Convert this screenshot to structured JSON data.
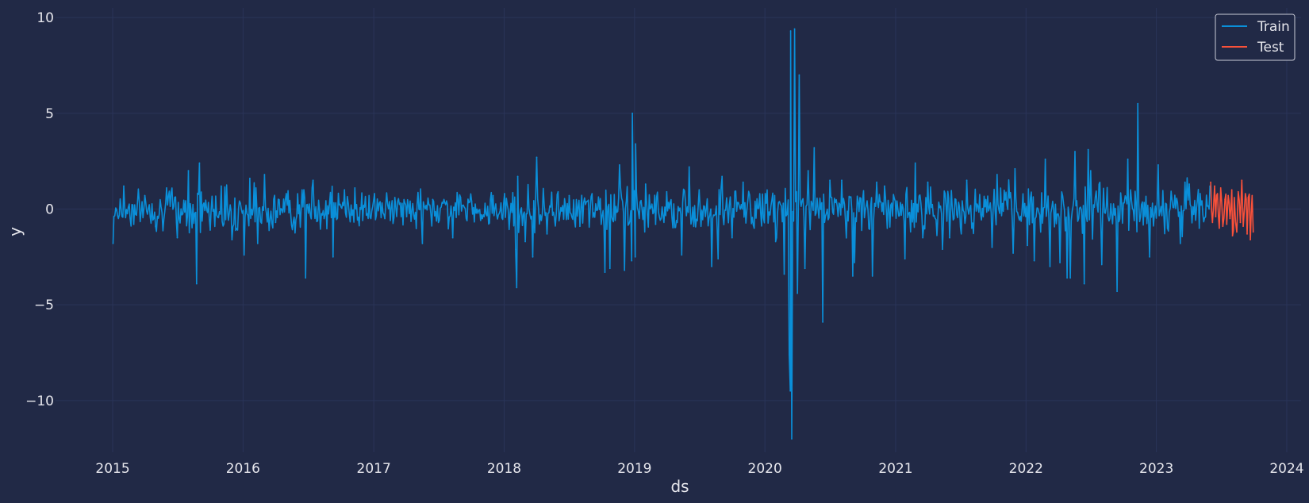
{
  "chart_data": {
    "type": "line",
    "title": "",
    "xlabel": "ds",
    "ylabel": "y",
    "xlim": [
      "2014-07-25",
      "2024-02-10"
    ],
    "ylim": [
      -12.7,
      10.5
    ],
    "grid": true,
    "legend_position": "top-right",
    "x_ticks": [
      "2015",
      "2016",
      "2017",
      "2018",
      "2019",
      "2020",
      "2021",
      "2022",
      "2023",
      "2024"
    ],
    "y_ticks": [
      10,
      5,
      0,
      -5,
      -10
    ],
    "y_tick_labels": [
      "10",
      "5",
      "0",
      "−5",
      "−10"
    ],
    "series": [
      {
        "name": "Train",
        "color": "#0a8fd9",
        "x": [
          "2015-01-02",
          "2015-02-01",
          "2015-03-01",
          "2015-04-01",
          "2015-05-01",
          "2015-06-01",
          "2015-07-01",
          "2015-08-01",
          "2015-08-24",
          "2015-09-01",
          "2015-10-01",
          "2015-11-01",
          "2015-12-01",
          "2016-01-04",
          "2016-01-20",
          "2016-02-11",
          "2016-03-01",
          "2016-04-01",
          "2016-05-01",
          "2016-06-24",
          "2016-07-15",
          "2016-08-15",
          "2016-09-09",
          "2016-10-11",
          "2016-11-09",
          "2016-12-01",
          "2017-01-03",
          "2017-02-01",
          "2017-03-01",
          "2017-04-03",
          "2017-05-17",
          "2017-06-15",
          "2017-07-14",
          "2017-08-10",
          "2017-09-01",
          "2017-10-02",
          "2017-11-01",
          "2017-12-01",
          "2018-01-02",
          "2018-02-02",
          "2018-02-05",
          "2018-02-08",
          "2018-03-01",
          "2018-03-22",
          "2018-04-02",
          "2018-05-01",
          "2018-06-01",
          "2018-07-02",
          "2018-08-01",
          "2018-09-04",
          "2018-10-10",
          "2018-10-24",
          "2018-11-20",
          "2018-12-04",
          "2018-12-24",
          "2018-12-26",
          "2019-01-03",
          "2019-01-04",
          "2019-02-01",
          "2019-03-01",
          "2019-04-01",
          "2019-05-13",
          "2019-06-03",
          "2019-07-01",
          "2019-08-05",
          "2019-08-23",
          "2019-09-03",
          "2019-10-01",
          "2019-11-01",
          "2019-12-02",
          "2020-01-02",
          "2020-01-31",
          "2020-02-24",
          "2020-03-09",
          "2020-03-12",
          "2020-03-13",
          "2020-03-16",
          "2020-03-24",
          "2020-04-01",
          "2020-04-06",
          "2020-04-22",
          "2020-05-01",
          "2020-05-18",
          "2020-06-11",
          "2020-07-01",
          "2020-08-03",
          "2020-09-03",
          "2020-09-08",
          "2020-10-28",
          "2020-11-09",
          "2020-12-01",
          "2021-01-27",
          "2021-02-25",
          "2021-03-18",
          "2021-04-01",
          "2021-05-12",
          "2021-06-01",
          "2021-07-19",
          "2021-08-02",
          "2021-09-28",
          "2021-10-12",
          "2021-11-26",
          "2021-12-01",
          "2022-01-05",
          "2022-01-24",
          "2022-02-24",
          "2022-03-09",
          "2022-04-06",
          "2022-04-26",
          "2022-05-05",
          "2022-05-18",
          "2022-06-13",
          "2022-06-24",
          "2022-07-01",
          "2022-08-01",
          "2022-09-13",
          "2022-10-13",
          "2022-11-10",
          "2022-12-13",
          "2023-01-06",
          "2023-02-01",
          "2023-03-09",
          "2023-03-22",
          "2023-04-03",
          "2023-05-01",
          "2023-05-31"
        ],
        "y": [
          -1.8,
          1.2,
          -0.8,
          0.7,
          -0.9,
          1.1,
          -1.5,
          2.0,
          -3.9,
          2.4,
          -1.1,
          1.2,
          -1.6,
          -2.4,
          1.6,
          -1.8,
          1.8,
          -0.7,
          0.8,
          -3.6,
          1.5,
          -0.5,
          -2.5,
          1.0,
          1.1,
          -0.6,
          0.8,
          -0.5,
          0.6,
          -0.4,
          -1.8,
          0.5,
          0.3,
          -1.5,
          0.6,
          0.4,
          -0.5,
          0.7,
          0.8,
          -2.1,
          -4.1,
          1.7,
          -1.7,
          -2.5,
          2.7,
          -1.3,
          0.9,
          0.7,
          -0.9,
          0.8,
          -3.3,
          -3.1,
          2.3,
          -3.2,
          -2.7,
          5.0,
          -2.5,
          3.4,
          1.3,
          -0.8,
          0.9,
          -2.4,
          2.2,
          1.0,
          -3.0,
          -2.6,
          1.7,
          -1.5,
          1.4,
          -1.0,
          0.8,
          -1.7,
          -3.4,
          -7.6,
          -9.5,
          9.3,
          -12.0,
          9.4,
          -4.4,
          7.0,
          -3.1,
          2.0,
          3.2,
          -5.9,
          1.5,
          1.5,
          -3.5,
          -2.8,
          -3.5,
          1.4,
          1.2,
          -2.6,
          2.4,
          -1.5,
          1.4,
          -2.1,
          -1.5,
          1.5,
          -1.0,
          -2.0,
          1.8,
          -2.3,
          2.1,
          -1.9,
          -2.7,
          2.6,
          -3.0,
          -2.8,
          -3.6,
          -3.6,
          3.0,
          -3.9,
          3.1,
          2.0,
          -2.9,
          -4.3,
          2.6,
          5.5,
          -2.5,
          2.3,
          -1.0,
          -1.8,
          1.4,
          1.3,
          -1.0,
          1.2
        ]
      },
      {
        "name": "Test",
        "color": "#f9513a",
        "x": [
          "2023-06-02",
          "2023-06-07",
          "2023-06-13",
          "2023-06-16",
          "2023-06-21",
          "2023-06-26",
          "2023-06-30",
          "2023-07-06",
          "2023-07-12",
          "2023-07-17",
          "2023-07-21",
          "2023-07-26",
          "2023-07-31",
          "2023-08-02",
          "2023-08-07",
          "2023-08-14",
          "2023-08-18",
          "2023-08-24",
          "2023-08-28",
          "2023-09-01",
          "2023-09-07",
          "2023-09-12",
          "2023-09-15",
          "2023-09-21",
          "2023-09-26",
          "2023-09-29"
        ],
        "y": [
          1.4,
          -0.7,
          1.2,
          -0.4,
          0.8,
          -1.0,
          1.1,
          -0.9,
          0.5,
          -0.8,
          0.7,
          -0.5,
          1.0,
          -1.4,
          0.6,
          -1.2,
          0.9,
          -0.7,
          1.5,
          -0.9,
          0.8,
          -1.3,
          0.6,
          -1.6,
          0.7,
          -1.2
        ]
      }
    ]
  }
}
